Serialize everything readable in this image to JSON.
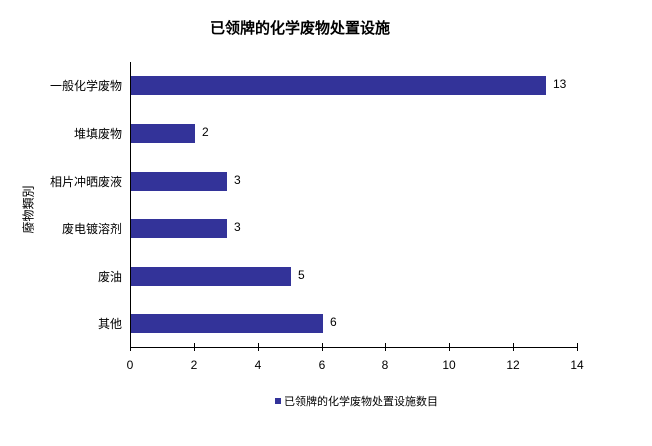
{
  "chart_data": {
    "type": "bar",
    "orientation": "horizontal",
    "title": "已领牌的化学废物处置设施",
    "xlabel": "",
    "ylabel": "廢物類別",
    "categories": [
      "一般化学废物",
      "堆填废物",
      "相片冲晒废液",
      "废电镀溶剂",
      "废油",
      "其他"
    ],
    "series": [
      {
        "name": "已领牌的化学废物处置设施数目",
        "values": [
          13,
          2,
          3,
          3,
          5,
          6
        ],
        "color": "#333399"
      }
    ],
    "xlim": [
      0,
      14
    ],
    "xticks": [
      "0",
      "2",
      "4",
      "6",
      "8",
      "10",
      "12",
      "14"
    ],
    "grid": false,
    "legend_position": "bottom",
    "data_labels": true
  },
  "title": "已领牌的化学废物处置设施",
  "ylabel": "廢物類別",
  "legend": {
    "label": "已领牌的化学废物处置设施数目",
    "color": "#333399"
  }
}
